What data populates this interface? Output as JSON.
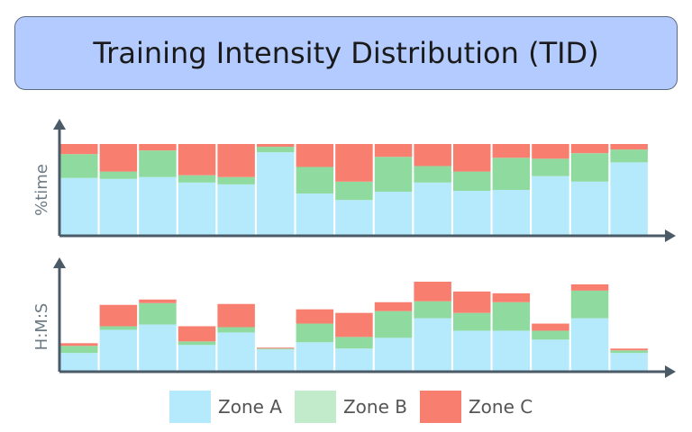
{
  "header": {
    "title": "Training Intensity Distribution (TID)"
  },
  "colors": {
    "zone_a": "#b5eafd",
    "zone_b": "#8fdb9f",
    "zone_c": "#f87f70",
    "axis": "#4b5a67",
    "zone_b_legend": "#c2ebcc"
  },
  "legend": {
    "items": [
      {
        "label": "Zone A",
        "color": "#b5eafd"
      },
      {
        "label": "Zone B",
        "color": "#c2ebcc"
      },
      {
        "label": "Zone C",
        "color": "#f87f70"
      }
    ]
  },
  "chart_data": [
    {
      "type": "bar",
      "stacked": true,
      "ylabel": "%time",
      "ylim": [
        0,
        100
      ],
      "series": [
        {
          "name": "Zone A",
          "values": [
            63,
            62,
            64,
            58,
            56,
            91,
            46,
            39,
            48,
            58,
            49,
            50,
            65,
            59,
            80
          ]
        },
        {
          "name": "Zone B",
          "values": [
            26,
            8,
            29,
            8,
            8,
            6,
            29,
            20,
            38,
            18,
            21,
            35,
            19,
            31,
            14
          ]
        },
        {
          "name": "Zone C",
          "values": [
            11,
            30,
            7,
            34,
            36,
            3,
            25,
            41,
            14,
            24,
            30,
            15,
            16,
            10,
            6
          ]
        }
      ]
    },
    {
      "type": "bar",
      "stacked": true,
      "ylabel": "H:M:S",
      "series": [
        {
          "name": "Zone A",
          "values": [
            21,
            47,
            53,
            30,
            44,
            25,
            33,
            26,
            38,
            60,
            46,
            46,
            36,
            60,
            21
          ]
        },
        {
          "name": "Zone B",
          "values": [
            8,
            4,
            24,
            4,
            6,
            1,
            21,
            13,
            30,
            19,
            20,
            32,
            10,
            31,
            3
          ]
        },
        {
          "name": "Zone C",
          "values": [
            3,
            24,
            4,
            17,
            26,
            1,
            16,
            27,
            10,
            22,
            24,
            10,
            8,
            7,
            2
          ]
        }
      ]
    }
  ]
}
